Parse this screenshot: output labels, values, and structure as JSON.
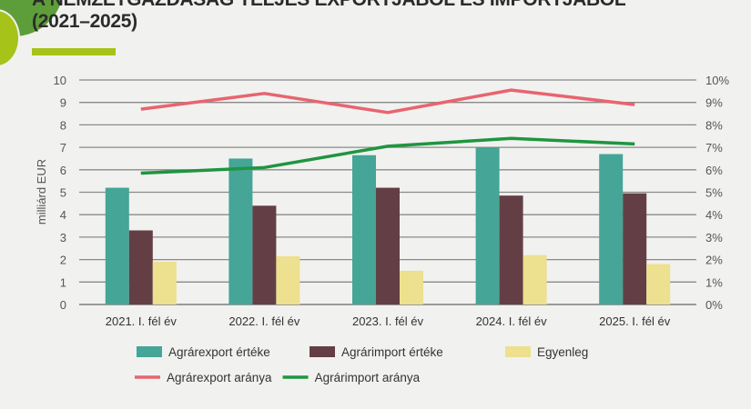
{
  "title_lines": [
    "A NEMZETGAZDASÁG TELJES EXPORTJÁBÓL ÉS IMPORTJÁBÓL",
    "(2021–2025)"
  ],
  "chart_data": {
    "type": "bar+line",
    "categories": [
      "2021. I. fél év",
      "2022. I. fél év",
      "2023. I. fél év",
      "2024. I. fél év",
      "2025. I. fél év"
    ],
    "ylabel": "milliárd EUR",
    "ylim": [
      0,
      10
    ],
    "yticks": [
      "0",
      "1",
      "2",
      "3",
      "4",
      "5",
      "6",
      "7",
      "8",
      "9",
      "10"
    ],
    "y2lim": [
      0,
      10
    ],
    "y2ticks": [
      "0%",
      "1%",
      "2%",
      "3%",
      "4%",
      "5%",
      "6%",
      "7%",
      "8%",
      "9%",
      "10%"
    ],
    "grid": true,
    "legend_position": "bottom",
    "bar_series": [
      {
        "name": "Agrárexport értéke",
        "color": "#45a596",
        "values": [
          5.2,
          6.5,
          6.65,
          7.0,
          6.7
        ]
      },
      {
        "name": "Agrárimport értéke",
        "color": "#633f45",
        "values": [
          3.3,
          4.4,
          5.2,
          4.85,
          4.95
        ]
      },
      {
        "name": "Egyenleg",
        "color": "#ede08e",
        "values": [
          1.9,
          2.15,
          1.5,
          2.2,
          1.8
        ]
      }
    ],
    "line_series": [
      {
        "name": "Agrárexport aránya",
        "color": "#e8646f",
        "axis": "right",
        "values": [
          8.7,
          9.4,
          8.55,
          9.55,
          8.9
        ]
      },
      {
        "name": "Agrárimport aránya",
        "color": "#1f9540",
        "axis": "right",
        "values": [
          5.85,
          6.1,
          7.05,
          7.4,
          7.15
        ]
      }
    ]
  }
}
